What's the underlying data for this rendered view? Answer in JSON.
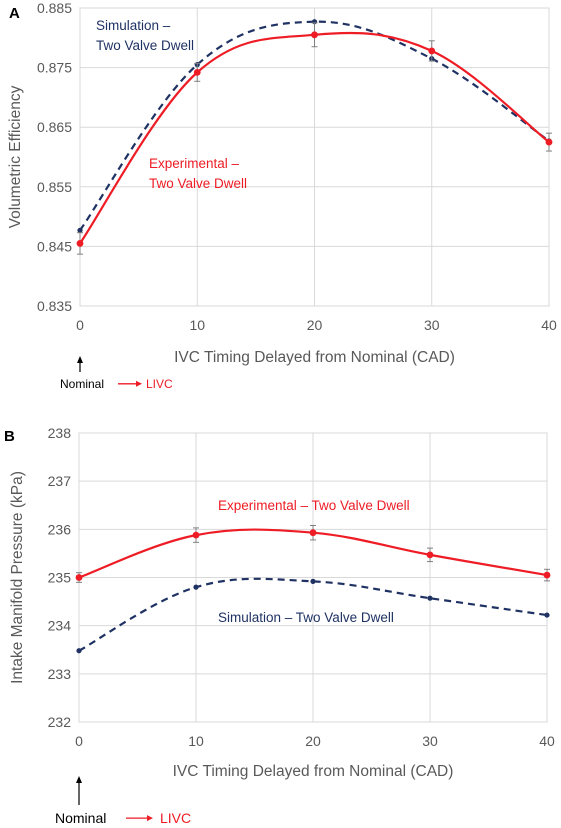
{
  "chart_data": [
    {
      "panel_letter": "A",
      "type": "line",
      "xlabel": "IVC Timing Delayed from Nominal (CAD)",
      "ylabel": "Volumetric Efficiency",
      "xlim": [
        0,
        40
      ],
      "ylim": [
        0.835,
        0.885
      ],
      "xticks": [
        0,
        10,
        20,
        30,
        40
      ],
      "yticks": [
        0.835,
        0.845,
        0.855,
        0.865,
        0.875,
        0.885
      ],
      "ytick_labels": [
        "0.835",
        "0.845",
        "0.855",
        "0.865",
        "0.875",
        "0.885"
      ],
      "xtick_labels": [
        "0",
        "10",
        "20",
        "30",
        "40"
      ],
      "grid": true,
      "series": [
        {
          "name": "Simulation – Two Valve Dwell",
          "label_lines": [
            "Simulation –",
            "Two Valve Dwell"
          ],
          "color": "#1f3263",
          "style": "dashed",
          "x": [
            0,
            10,
            20,
            30,
            40
          ],
          "y": [
            0.8477,
            0.8755,
            0.8827,
            0.8765,
            0.8627
          ]
        },
        {
          "name": "Experimental – Two Valve Dwell",
          "label_lines": [
            "Experimental –",
            "Two Valve Dwell"
          ],
          "color": "#ee1c25",
          "style": "solid",
          "x": [
            0,
            10,
            20,
            30,
            40
          ],
          "y": [
            0.8455,
            0.8742,
            0.8805,
            0.8778,
            0.8625
          ],
          "error": [
            0.0018,
            0.0015,
            0.002,
            0.0017,
            0.0015
          ]
        }
      ],
      "annotation": {
        "start": "Nominal",
        "end": "LIVC"
      }
    },
    {
      "panel_letter": "B",
      "type": "line",
      "xlabel": "IVC Timing Delayed from Nominal (CAD)",
      "ylabel": "Intake Manifold Pressure (kPa)",
      "xlim": [
        0,
        40
      ],
      "ylim": [
        232,
        238
      ],
      "xticks": [
        0,
        10,
        20,
        30,
        40
      ],
      "yticks": [
        232,
        233,
        234,
        235,
        236,
        237,
        238
      ],
      "ytick_labels": [
        "232",
        "233",
        "234",
        "235",
        "236",
        "237",
        "238"
      ],
      "xtick_labels": [
        "0",
        "10",
        "20",
        "30",
        "40"
      ],
      "grid": true,
      "series": [
        {
          "name": "Experimental – Two Valve Dwell",
          "label_lines": [
            "Experimental – Two Valve Dwell"
          ],
          "color": "#ee1c25",
          "style": "solid",
          "x": [
            0,
            10,
            20,
            30,
            40
          ],
          "y": [
            235.0,
            235.88,
            235.93,
            235.47,
            235.05
          ],
          "error": [
            0.1,
            0.15,
            0.15,
            0.14,
            0.12
          ]
        },
        {
          "name": "Simulation – Two Valve Dwell",
          "label_lines": [
            "Simulation – Two Valve Dwell"
          ],
          "color": "#1f3263",
          "style": "dashed",
          "x": [
            0,
            10,
            20,
            30,
            40
          ],
          "y": [
            233.48,
            234.8,
            234.92,
            234.57,
            234.22
          ]
        }
      ],
      "annotation": {
        "start": "Nominal",
        "end": "LIVC"
      }
    }
  ]
}
